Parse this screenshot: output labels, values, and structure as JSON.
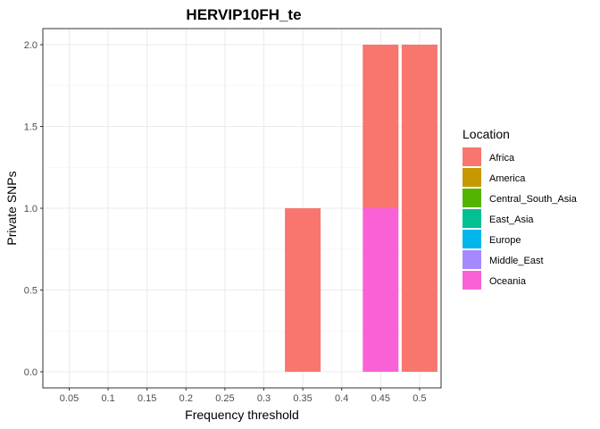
{
  "chart_data": {
    "type": "bar",
    "stacked": true,
    "title": "HERVIP10FH_te",
    "xlabel": "Frequency threshold",
    "ylabel": "Private SNPs",
    "categories": [
      "0.05",
      "0.1",
      "0.15",
      "0.2",
      "0.25",
      "0.3",
      "0.35",
      "0.4",
      "0.45",
      "0.5"
    ],
    "ylim": [
      0,
      2
    ],
    "yticks": [
      "0.0",
      "0.5",
      "1.0",
      "1.5",
      "2.0"
    ],
    "grid": true,
    "legend_position": "right",
    "legend_title": "Location",
    "series": [
      {
        "name": "Africa",
        "color": "#F8766D",
        "values": [
          0,
          0,
          0,
          0,
          0,
          0,
          1,
          0,
          1,
          2
        ]
      },
      {
        "name": "America",
        "color": "#C49A00",
        "values": [
          0,
          0,
          0,
          0,
          0,
          0,
          0,
          0,
          0,
          0
        ]
      },
      {
        "name": "Central_South_Asia",
        "color": "#53B400",
        "values": [
          0,
          0,
          0,
          0,
          0,
          0,
          0,
          0,
          0,
          0
        ]
      },
      {
        "name": "East_Asia",
        "color": "#00C094",
        "values": [
          0,
          0,
          0,
          0,
          0,
          0,
          0,
          0,
          0,
          0
        ]
      },
      {
        "name": "Europe",
        "color": "#00B6EB",
        "values": [
          0,
          0,
          0,
          0,
          0,
          0,
          0,
          0,
          0,
          0
        ]
      },
      {
        "name": "Middle_East",
        "color": "#A58AFF",
        "values": [
          0,
          0,
          0,
          0,
          0,
          0,
          0,
          0,
          0,
          0
        ]
      },
      {
        "name": "Oceania",
        "color": "#FB61D7",
        "values": [
          0,
          0,
          0,
          0,
          0,
          0,
          0,
          0,
          1,
          0
        ]
      }
    ]
  }
}
